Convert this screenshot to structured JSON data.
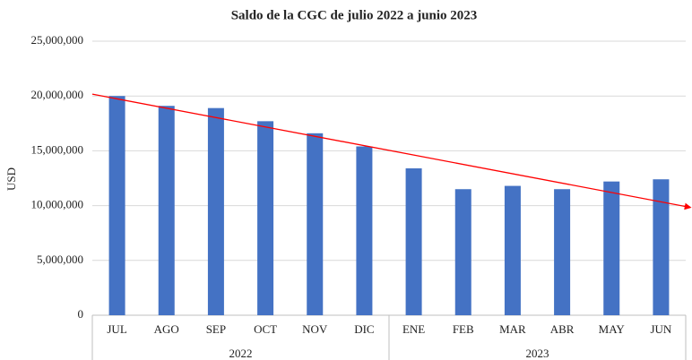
{
  "chart_data": {
    "type": "bar",
    "title": "Saldo de la CGC de julio 2022 a junio 2023",
    "y_label": "USD",
    "categories": [
      "JUL",
      "AGO",
      "SEP",
      "OCT",
      "NOV",
      "DIC",
      "ENE",
      "FEB",
      "MAR",
      "ABR",
      "MAY",
      "JUN"
    ],
    "groups": [
      {
        "label": "2022",
        "count": 6
      },
      {
        "label": "2023",
        "count": 6
      }
    ],
    "values": [
      20000000,
      19100000,
      18900000,
      17700000,
      16600000,
      15400000,
      13400000,
      11500000,
      11800000,
      11500000,
      12200000,
      12400000
    ],
    "color": "#4472c4",
    "ylim": [
      0,
      25000000
    ],
    "yticks": [
      {
        "value": 0,
        "label": "0"
      },
      {
        "value": 5000000,
        "label": "5,000,000"
      },
      {
        "value": 10000000,
        "label": "10,000,000"
      },
      {
        "value": 15000000,
        "label": "15,000,000"
      },
      {
        "value": 20000000,
        "label": "20,000,000"
      },
      {
        "value": 25000000,
        "label": "25,000,000"
      }
    ],
    "grid": true,
    "trendline": true,
    "trendline_color": "#ff0000"
  }
}
